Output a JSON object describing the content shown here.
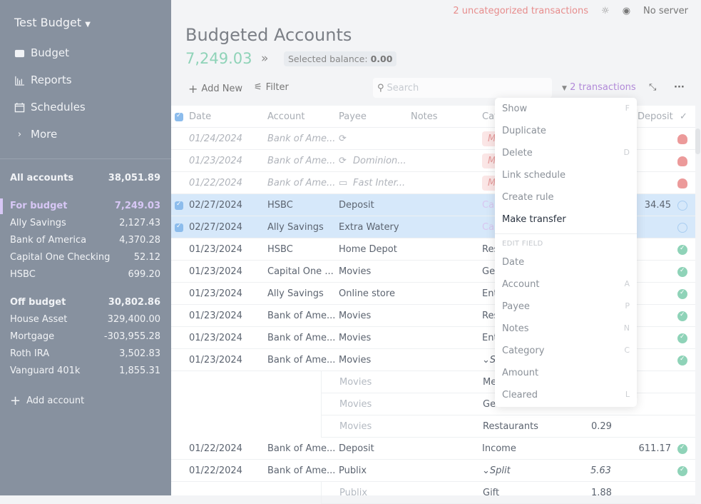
{
  "sidebar": {
    "budget_name": "Test Budget",
    "nav": [
      "Budget",
      "Reports",
      "Schedules",
      "More"
    ],
    "all": {
      "label": "All accounts",
      "value": "38,051.89"
    },
    "for_budget": {
      "label": "For budget",
      "value": "7,249.03"
    },
    "budget_accounts": [
      {
        "name": "Ally Savings",
        "value": "2,127.43"
      },
      {
        "name": "Bank of America",
        "value": "4,370.28"
      },
      {
        "name": "Capital One Checking",
        "value": "52.12"
      },
      {
        "name": "HSBC",
        "value": "699.20"
      }
    ],
    "off_budget": {
      "label": "Off budget",
      "value": "30,802.86"
    },
    "off_accounts": [
      {
        "name": "House Asset",
        "value": "329,400.00"
      },
      {
        "name": "Mortgage",
        "value": "-303,955.28"
      },
      {
        "name": "Roth IRA",
        "value": "3,502.83"
      },
      {
        "name": "Vanguard 401k",
        "value": "1,855.31"
      }
    ],
    "add_account": "Add account"
  },
  "topbar": {
    "uncategorized": "2 uncategorized transactions",
    "server": "No server"
  },
  "header": {
    "title": "Budgeted Accounts",
    "balance": "7,249.03",
    "selected_label": "Selected balance:",
    "selected_value": "0.00"
  },
  "toolbar": {
    "add_new": "Add New",
    "filter": "Filter",
    "search_placeholder": "Search",
    "selection": "2 transactions"
  },
  "columns": {
    "date": "Date",
    "account": "Account",
    "payee": "Payee",
    "notes": "Notes",
    "category": "Cat",
    "deposit": "Deposit"
  },
  "rows": [
    {
      "type": "sch",
      "date": "01/24/2024",
      "account": "Bank of Ame...",
      "payee_icon": "repeat",
      "payee": "",
      "category": "M",
      "cleared": "skull"
    },
    {
      "type": "sch",
      "date": "01/23/2024",
      "account": "Bank of Ame...",
      "payee_icon": "repeat",
      "payee": "Dominion...",
      "category": "M",
      "cleared": "skull"
    },
    {
      "type": "sch",
      "date": "01/22/2024",
      "account": "Bank of Ame...",
      "payee_icon": "calendar",
      "payee": "Fast Inter...",
      "category": "M",
      "cleared": "skull"
    },
    {
      "type": "sel",
      "date": "02/27/2024",
      "account": "HSBC",
      "payee": "Deposit",
      "category": "Ca",
      "deposit": "34.45",
      "cleared": "out"
    },
    {
      "type": "sel",
      "date": "02/27/2024",
      "account": "Ally Savings",
      "payee": "Extra Watery",
      "category": "Ca",
      "cleared": "out"
    },
    {
      "date": "01/23/2024",
      "account": "HSBC",
      "payee": "Home Depot",
      "category": "Res",
      "cleared": "ok"
    },
    {
      "date": "01/23/2024",
      "account": "Capital One ...",
      "payee": "Movies",
      "category": "Ge",
      "cleared": "ok"
    },
    {
      "date": "01/23/2024",
      "account": "Ally Savings",
      "payee": "Online store",
      "category": "Ent",
      "cleared": "ok"
    },
    {
      "date": "01/23/2024",
      "account": "Bank of Ame...",
      "payee": "Movies",
      "category": "Res",
      "cleared": "ok"
    },
    {
      "date": "01/23/2024",
      "account": "Bank of Ame...",
      "payee": "Movies",
      "category": "Ent",
      "cleared": "ok"
    },
    {
      "date": "01/23/2024",
      "account": "Bank of Ame...",
      "payee": "Movies",
      "category": "⌄S",
      "cleared": "ok"
    },
    {
      "type": "child",
      "payee": "Movies",
      "category": "Me"
    },
    {
      "type": "child",
      "payee": "Movies",
      "category": "Ge"
    },
    {
      "type": "child",
      "payee": "Movies",
      "category": "Restaurants",
      "payment": "0.29"
    },
    {
      "date": "01/22/2024",
      "account": "Bank of Ame...",
      "payee": "Deposit",
      "category": "Income",
      "deposit": "611.17",
      "cleared": "ok"
    },
    {
      "date": "01/22/2024",
      "account": "Bank of Ame...",
      "payee": "Publix",
      "category": "⌄Split",
      "payment": "5.63",
      "cleared": "ok",
      "italic_amount": true
    },
    {
      "type": "child",
      "payee": "Publix",
      "category": "Gift",
      "payment": "1.88"
    }
  ],
  "menu": {
    "items": [
      {
        "label": "Show",
        "key": "F"
      },
      {
        "label": "Duplicate",
        "key": ""
      },
      {
        "label": "Delete",
        "key": "D"
      },
      {
        "label": "Link schedule",
        "key": ""
      },
      {
        "label": "Create rule",
        "key": ""
      },
      {
        "label": "Make transfer",
        "key": ""
      }
    ],
    "edit_heading": "EDIT FIELD",
    "edit_items": [
      {
        "label": "Date",
        "key": ""
      },
      {
        "label": "Account",
        "key": "A"
      },
      {
        "label": "Payee",
        "key": "P"
      },
      {
        "label": "Notes",
        "key": "N"
      },
      {
        "label": "Category",
        "key": "C"
      },
      {
        "label": "Amount",
        "key": ""
      },
      {
        "label": "Cleared",
        "key": "L"
      }
    ]
  }
}
